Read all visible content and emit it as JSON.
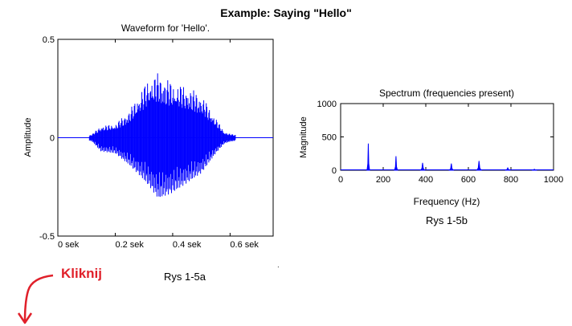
{
  "page": {
    "title": "Example: Saying \"Hello\"",
    "caption_a": "Rys 1-5a",
    "caption_b": "Rys 1-5b",
    "link_label": "Kliknij",
    "stray_mark": "."
  },
  "colors": {
    "series": "#0000ff",
    "annotation": "#e0202a",
    "axis": "#000000"
  },
  "icons": {
    "annotation_arrow": "curved-arrow-down-icon"
  },
  "chart_data": [
    {
      "type": "line",
      "title": "Waveform for 'Hello'.",
      "xlabel": "",
      "ylabel": "Amplitude",
      "xlim": [
        0,
        0.75
      ],
      "ylim": [
        -0.5,
        0.5
      ],
      "x_ticks": [
        {
          "value": 0.0,
          "label": "0 sek"
        },
        {
          "value": 0.2,
          "label": "0.2 sek"
        },
        {
          "value": 0.4,
          "label": "0.4 sek"
        },
        {
          "value": 0.6,
          "label": "0.6 sek"
        }
      ],
      "y_ticks": [
        {
          "value": 0.5,
          "label": "0.5"
        },
        {
          "value": 0,
          "label": "0"
        },
        {
          "value": -0.5,
          "label": "-0.5"
        }
      ],
      "envelope": {
        "t": [
          0.0,
          0.08,
          0.12,
          0.15,
          0.2,
          0.25,
          0.29,
          0.32,
          0.35,
          0.4,
          0.45,
          0.5,
          0.55,
          0.58,
          0.6,
          0.65,
          0.7,
          0.75
        ],
        "pos": [
          0.0,
          0.0,
          0.02,
          0.06,
          0.07,
          0.14,
          0.24,
          0.31,
          0.33,
          0.28,
          0.26,
          0.22,
          0.1,
          0.03,
          0.02,
          0.01,
          0.0,
          0.0
        ],
        "neg": [
          0.0,
          0.0,
          0.02,
          0.07,
          0.08,
          0.14,
          0.2,
          0.25,
          0.31,
          0.28,
          0.23,
          0.18,
          0.08,
          0.03,
          0.02,
          0.01,
          0.0,
          0.0
        ]
      },
      "grid": false
    },
    {
      "type": "area",
      "title": "Spectrum (frequencies present)",
      "xlabel": "Frequency (Hz)",
      "ylabel": "Magnitude",
      "xlim": [
        0,
        1000
      ],
      "ylim": [
        0,
        1000
      ],
      "x_ticks": [
        0,
        200,
        400,
        600,
        800,
        1000
      ],
      "y_ticks": [
        0,
        500,
        1000
      ],
      "peaks": [
        {
          "x": 130,
          "y": 400,
          "w": 6
        },
        {
          "x": 260,
          "y": 210,
          "w": 7
        },
        {
          "x": 385,
          "y": 110,
          "w": 9
        },
        {
          "x": 520,
          "y": 100,
          "w": 9
        },
        {
          "x": 650,
          "y": 140,
          "w": 10
        },
        {
          "x": 785,
          "y": 35,
          "w": 12
        },
        {
          "x": 910,
          "y": 15,
          "w": 12
        }
      ],
      "grid": false
    }
  ]
}
